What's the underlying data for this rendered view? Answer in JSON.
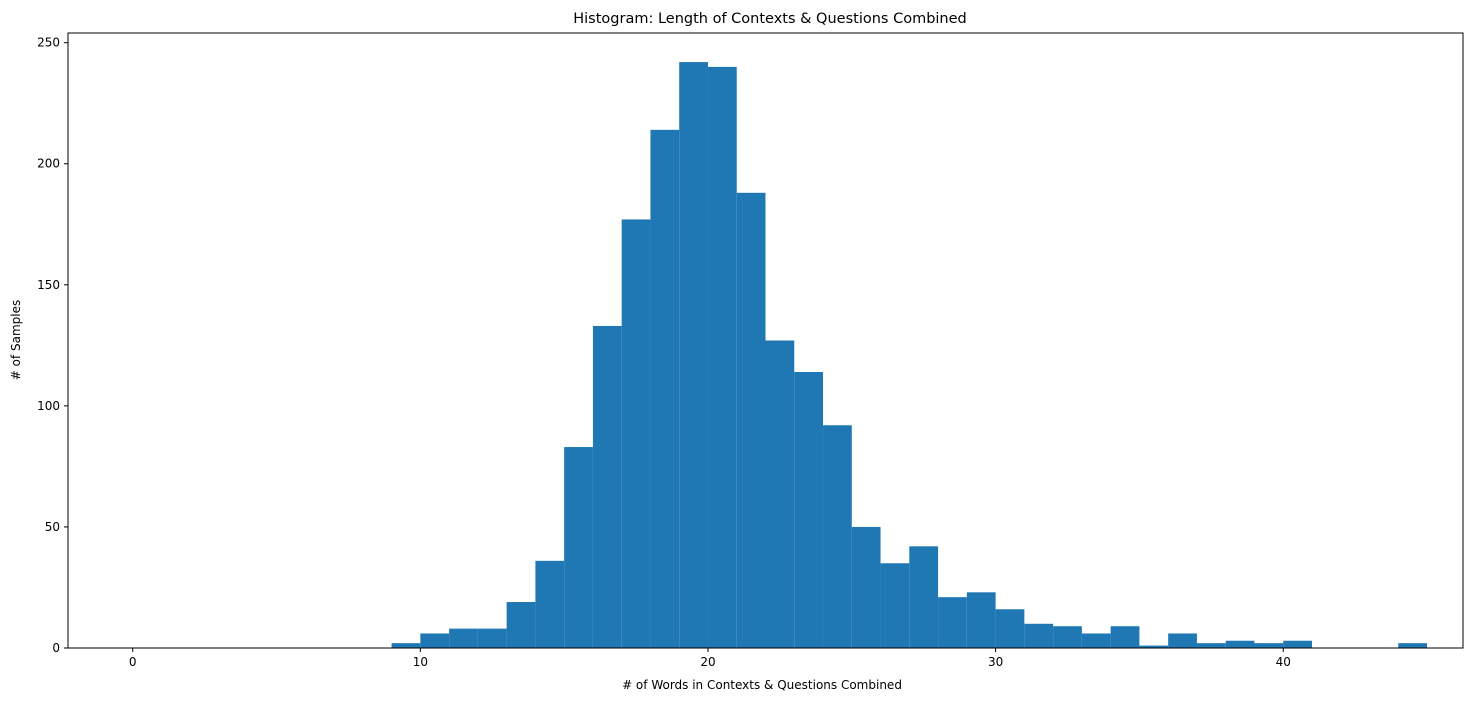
{
  "chart_data": {
    "type": "bar",
    "title": "Histogram: Length of Contexts & Questions Combined",
    "xlabel": "# of Words in Contexts & Questions Combined",
    "ylabel": "# of Samples",
    "xlim": [
      -2.25,
      46.25
    ],
    "ylim": [
      0,
      254
    ],
    "xticks": [
      0,
      10,
      20,
      30,
      40
    ],
    "yticks": [
      0,
      50,
      100,
      150,
      200,
      250
    ],
    "bar_color": "#1f77b4",
    "grid": false,
    "legend": "none",
    "bins": [
      {
        "x0": 0,
        "x1": 1,
        "count": 0
      },
      {
        "x0": 1,
        "x1": 2,
        "count": 0
      },
      {
        "x0": 2,
        "x1": 3,
        "count": 0
      },
      {
        "x0": 3,
        "x1": 4,
        "count": 0
      },
      {
        "x0": 4,
        "x1": 5,
        "count": 0
      },
      {
        "x0": 5,
        "x1": 6,
        "count": 0
      },
      {
        "x0": 6,
        "x1": 7,
        "count": 0
      },
      {
        "x0": 7,
        "x1": 8,
        "count": 0
      },
      {
        "x0": 8,
        "x1": 9,
        "count": 0
      },
      {
        "x0": 9,
        "x1": 10,
        "count": 2
      },
      {
        "x0": 10,
        "x1": 11,
        "count": 6
      },
      {
        "x0": 11,
        "x1": 12,
        "count": 8
      },
      {
        "x0": 12,
        "x1": 13,
        "count": 8
      },
      {
        "x0": 13,
        "x1": 14,
        "count": 19
      },
      {
        "x0": 14,
        "x1": 15,
        "count": 36
      },
      {
        "x0": 15,
        "x1": 16,
        "count": 83
      },
      {
        "x0": 16,
        "x1": 17,
        "count": 133
      },
      {
        "x0": 17,
        "x1": 18,
        "count": 177
      },
      {
        "x0": 18,
        "x1": 19,
        "count": 214
      },
      {
        "x0": 19,
        "x1": 20,
        "count": 242
      },
      {
        "x0": 20,
        "x1": 21,
        "count": 240
      },
      {
        "x0": 21,
        "x1": 22,
        "count": 188
      },
      {
        "x0": 22,
        "x1": 23,
        "count": 127
      },
      {
        "x0": 23,
        "x1": 24,
        "count": 114
      },
      {
        "x0": 24,
        "x1": 25,
        "count": 92
      },
      {
        "x0": 25,
        "x1": 26,
        "count": 50
      },
      {
        "x0": 26,
        "x1": 27,
        "count": 35
      },
      {
        "x0": 27,
        "x1": 28,
        "count": 42
      },
      {
        "x0": 28,
        "x1": 29,
        "count": 21
      },
      {
        "x0": 29,
        "x1": 30,
        "count": 23
      },
      {
        "x0": 30,
        "x1": 31,
        "count": 16
      },
      {
        "x0": 31,
        "x1": 32,
        "count": 10
      },
      {
        "x0": 32,
        "x1": 33,
        "count": 9
      },
      {
        "x0": 33,
        "x1": 34,
        "count": 6
      },
      {
        "x0": 34,
        "x1": 35,
        "count": 9
      },
      {
        "x0": 35,
        "x1": 36,
        "count": 1
      },
      {
        "x0": 36,
        "x1": 37,
        "count": 6
      },
      {
        "x0": 37,
        "x1": 38,
        "count": 2
      },
      {
        "x0": 38,
        "x1": 39,
        "count": 3
      },
      {
        "x0": 39,
        "x1": 40,
        "count": 2
      },
      {
        "x0": 40,
        "x1": 41,
        "count": 3
      },
      {
        "x0": 41,
        "x1": 42,
        "count": 0
      },
      {
        "x0": 42,
        "x1": 43,
        "count": 0
      },
      {
        "x0": 43,
        "x1": 44,
        "count": 0
      },
      {
        "x0": 44,
        "x1": 45,
        "count": 2
      }
    ]
  }
}
